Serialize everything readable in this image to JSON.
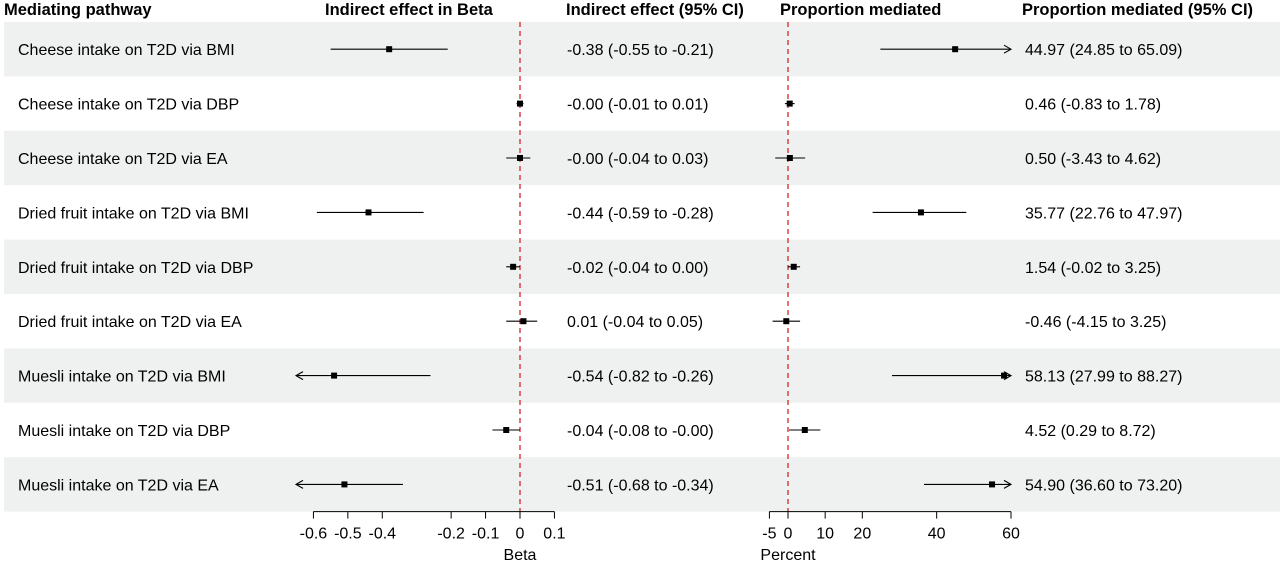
{
  "headers": {
    "pathway": "Mediating pathway",
    "indirect_beta": "Indirect effect in Beta",
    "indirect_ci": "Indirect effect (95% CI)",
    "prop": "Proportion mediated",
    "prop_ci": "Proportion mediated (95% CI)"
  },
  "colors": {
    "stripe": "#eef1ef",
    "ref_line": "#d62728",
    "marks": "#000000"
  },
  "chart_data": [
    {
      "type": "forest",
      "xlabel": "Beta",
      "xlim": [
        -0.6,
        0.1
      ],
      "xticks": [
        -0.6,
        -0.5,
        -0.4,
        -0.2,
        -0.1,
        0,
        0.1
      ],
      "tick_labels": [
        "-0.6",
        "-0.5",
        "-0.4",
        "-0.2",
        "-0.1",
        "0",
        "0.1"
      ],
      "reference_line": 0,
      "rows": [
        {
          "label": "Cheese intake on T2D  via BMI",
          "estimate": -0.38,
          "lower": -0.55,
          "upper": -0.21,
          "text": "-0.38 (-0.55 to -0.21)"
        },
        {
          "label": "Cheese intake on T2D  via DBP",
          "estimate": -0.0,
          "lower": -0.01,
          "upper": 0.01,
          "text": "-0.00 (-0.01 to 0.01)"
        },
        {
          "label": "Cheese intake on T2D  via EA",
          "estimate": -0.0,
          "lower": -0.04,
          "upper": 0.03,
          "text": "-0.00 (-0.04 to 0.03)"
        },
        {
          "label": "Dried fruit intake on T2D via BMI",
          "estimate": -0.44,
          "lower": -0.59,
          "upper": -0.28,
          "text": "-0.44 (-0.59 to -0.28)"
        },
        {
          "label": "Dried fruit intake on T2D via DBP",
          "estimate": -0.02,
          "lower": -0.04,
          "upper": 0.0,
          "text": "-0.02 (-0.04 to 0.00)"
        },
        {
          "label": "Dried fruit intake on T2D via EA",
          "estimate": 0.01,
          "lower": -0.04,
          "upper": 0.05,
          "text": "0.01 (-0.04 to 0.05)"
        },
        {
          "label": "Muesli intake on T2D via BMI",
          "estimate": -0.54,
          "lower": -0.82,
          "upper": -0.26,
          "text": "-0.54 (-0.82 to -0.26)"
        },
        {
          "label": "Muesli intake on T2D via DBP",
          "estimate": -0.04,
          "lower": -0.08,
          "upper": -0.0,
          "text": "-0.04 (-0.08 to -0.00)"
        },
        {
          "label": "Muesli intake on T2D via EA",
          "estimate": -0.51,
          "lower": -0.68,
          "upper": -0.34,
          "text": "-0.51 (-0.68 to -0.34)"
        }
      ]
    },
    {
      "type": "forest",
      "xlabel": "Percent",
      "xlim": [
        -5,
        60
      ],
      "xticks": [
        -5,
        0,
        10,
        20,
        40,
        60
      ],
      "tick_labels": [
        "-5",
        "0",
        "10",
        "20",
        "40",
        "60"
      ],
      "reference_line": 0,
      "rows": [
        {
          "estimate": 44.97,
          "lower": 24.85,
          "upper": 65.09,
          "text": "44.97 (24.85 to 65.09)"
        },
        {
          "estimate": 0.46,
          "lower": -0.83,
          "upper": 1.78,
          "text": "0.46 (-0.83 to 1.78)"
        },
        {
          "estimate": 0.5,
          "lower": -3.43,
          "upper": 4.62,
          "text": "0.50 (-3.43 to 4.62)"
        },
        {
          "estimate": 35.77,
          "lower": 22.76,
          "upper": 47.97,
          "text": "35.77 (22.76 to 47.97)"
        },
        {
          "estimate": 1.54,
          "lower": -0.02,
          "upper": 3.25,
          "text": "1.54 (-0.02 to 3.25)"
        },
        {
          "estimate": -0.46,
          "lower": -4.15,
          "upper": 3.25,
          "text": "-0.46 (-4.15 to 3.25)"
        },
        {
          "estimate": 58.13,
          "lower": 27.99,
          "upper": 88.27,
          "text": "58.13 (27.99 to 88.27)"
        },
        {
          "estimate": 4.52,
          "lower": 0.29,
          "upper": 8.72,
          "text": "4.52 (0.29 to 8.72)"
        },
        {
          "estimate": 54.9,
          "lower": 36.6,
          "upper": 73.2,
          "text": "54.90 (36.60 to 73.20)"
        }
      ]
    }
  ]
}
